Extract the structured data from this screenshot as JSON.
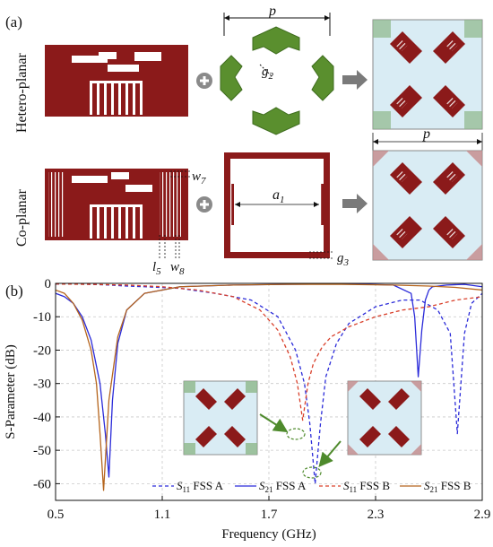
{
  "panel_a": {
    "label": "(a)",
    "row1_label": "Hetero-planar",
    "row2_label": "Co-planar",
    "dim_p": "p",
    "dim_g2": "g",
    "dim_g2_sub": "2",
    "dim_a1": "a",
    "dim_a1_sub": "1",
    "dim_g3": "g",
    "dim_g3_sub": "3",
    "dim_w7": "w",
    "dim_w7_sub": "7",
    "dim_l5": "l",
    "dim_l5_sub": "5",
    "dim_w8": "w",
    "dim_w8_sub": "8",
    "dim_p_right": "p",
    "colors": {
      "metal": "#8b1a1a",
      "green": "#5a8f2e",
      "cell_bg": "#d9ecf4",
      "arrow": "#7a7a7a"
    }
  },
  "panel_b": {
    "label": "(b)",
    "chart_data": {
      "type": "line",
      "xlabel": "Frequency (GHz)",
      "ylabel": "S-Parameter (dB)",
      "xlim": [
        0.5,
        2.9
      ],
      "ylim": [
        -65,
        0
      ],
      "xticks": [
        0.5,
        1.1,
        1.7,
        2.3,
        2.9
      ],
      "xtick_labels": [
        "0.5",
        "1.1",
        "1.7",
        "2.3",
        "2.9"
      ],
      "yticks": [
        0,
        -10,
        -20,
        -30,
        -40,
        -50,
        -60
      ],
      "ytick_labels": [
        "0",
        "-10",
        "-20",
        "-30",
        "-40",
        "-50",
        "-60"
      ],
      "grid": true,
      "legend_position": "bottom",
      "series": [
        {
          "name": "S11 FSS A",
          "name_main": "S",
          "name_sub": "11",
          "name_rest": " FSS A",
          "color": "#2b2bd9",
          "dash": "dashed",
          "x": [
            0.5,
            0.6,
            0.7,
            0.8,
            0.9,
            1.0,
            1.2,
            1.4,
            1.6,
            1.75,
            1.85,
            1.9,
            1.93,
            1.96,
            1.99,
            2.02,
            2.08,
            2.15,
            2.3,
            2.45,
            2.55,
            2.65,
            2.72,
            2.76,
            2.8,
            2.84,
            2.9
          ],
          "y": [
            -0.2,
            -0.2,
            -0.3,
            -0.5,
            -0.8,
            -1,
            -1.5,
            -3,
            -5,
            -10,
            -20,
            -30,
            -42,
            -60,
            -42,
            -28,
            -18,
            -12,
            -7,
            -5,
            -5,
            -8,
            -15,
            -45,
            -15,
            -6,
            -3
          ]
        },
        {
          "name": "S21 FSS A",
          "name_main": "S",
          "name_sub": "21",
          "name_rest": " FSS A",
          "color": "#2b2bd9",
          "dash": "solid",
          "x": [
            0.5,
            0.55,
            0.6,
            0.65,
            0.7,
            0.75,
            0.78,
            0.8,
            0.82,
            0.85,
            0.9,
            1.0,
            1.2,
            1.5,
            1.8,
            2.0,
            2.2,
            2.4,
            2.5,
            2.52,
            2.54,
            2.56,
            2.58,
            2.6,
            2.62,
            2.7,
            2.8,
            2.9
          ],
          "y": [
            -3,
            -4,
            -6,
            -10,
            -17,
            -30,
            -45,
            -58,
            -35,
            -18,
            -8,
            -3,
            -1,
            -0.5,
            -0.3,
            -0.2,
            -0.2,
            -0.5,
            -3,
            -10,
            -28,
            -14,
            -5,
            -2,
            -1,
            -0.5,
            -0.3,
            -1
          ]
        },
        {
          "name": "S11 FSS B",
          "name_main": "S",
          "name_sub": "11",
          "name_rest": " FSS B",
          "color": "#d9402b",
          "dash": "dashed",
          "x": [
            0.5,
            0.7,
            0.9,
            1.1,
            1.3,
            1.5,
            1.65,
            1.75,
            1.82,
            1.86,
            1.89,
            1.92,
            1.95,
            2.0,
            2.05,
            2.15,
            2.3,
            2.45,
            2.6,
            2.75,
            2.9
          ],
          "y": [
            -0.2,
            -0.3,
            -0.5,
            -1,
            -2,
            -4,
            -8,
            -14,
            -22,
            -30,
            -41,
            -30,
            -24,
            -19,
            -16,
            -13,
            -10,
            -8,
            -7,
            -5,
            -4
          ]
        },
        {
          "name": "S21 FSS B",
          "name_main": "S",
          "name_sub": "21",
          "name_rest": " FSS B",
          "color": "#b5651d",
          "dash": "solid",
          "x": [
            0.5,
            0.55,
            0.6,
            0.65,
            0.7,
            0.73,
            0.75,
            0.77,
            0.8,
            0.85,
            0.9,
            1.0,
            1.2,
            1.5,
            1.8,
            2.1,
            2.4,
            2.6,
            2.75,
            2.9
          ],
          "y": [
            -2,
            -3,
            -6,
            -11,
            -20,
            -30,
            -45,
            -62,
            -35,
            -16,
            -8,
            -3,
            -1,
            -0.5,
            -0.3,
            -0.3,
            -0.5,
            -0.8,
            -1.2,
            -2
          ]
        }
      ]
    }
  }
}
